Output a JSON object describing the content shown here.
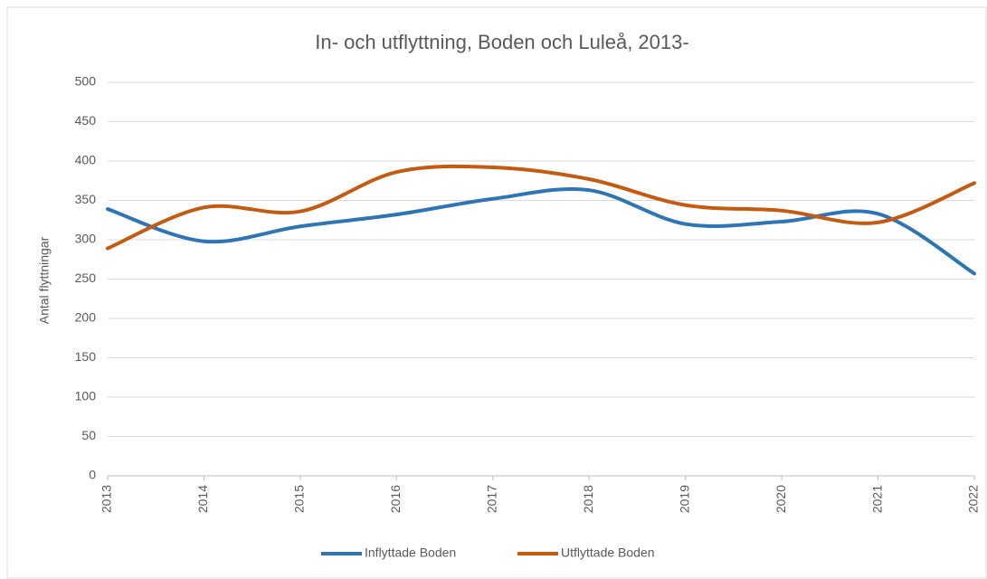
{
  "chart_data": {
    "type": "line",
    "title": "In- och utflyttning, Boden och Luleå, 2013-",
    "y_label": "Antal flyttningar",
    "categories": [
      "2013",
      "2014",
      "2015",
      "2016",
      "2017",
      "2018",
      "2019",
      "2020",
      "2021",
      "2022"
    ],
    "series": [
      {
        "name": "Inflyttade Boden",
        "color": "#2e75b6",
        "values": [
          339,
          298,
          317,
          332,
          352,
          363,
          320,
          323,
          333,
          257
        ]
      },
      {
        "name": "Utflyttade Boden",
        "color": "#c55a11",
        "values": [
          289,
          341,
          336,
          386,
          392,
          377,
          344,
          337,
          322,
          372
        ]
      }
    ],
    "ylim": [
      0,
      500
    ],
    "yticks": [
      0,
      50,
      100,
      150,
      200,
      250,
      300,
      350,
      400,
      450,
      500
    ],
    "grid": true,
    "legend": "bottom",
    "smooth": true
  }
}
